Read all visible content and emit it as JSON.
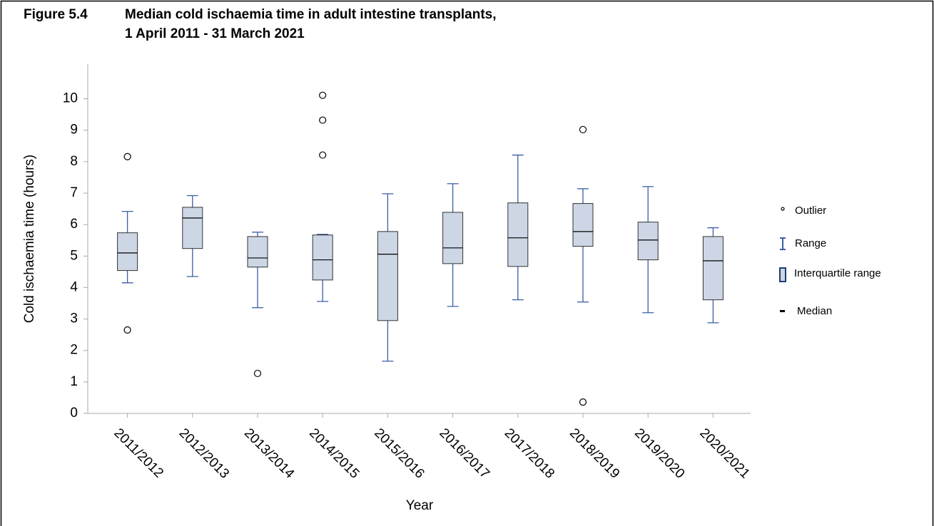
{
  "chart_data": {
    "type": "box",
    "figure_label": "Figure 5.4",
    "title": [
      "Median cold ischaemia time in adult intestine transplants,",
      "1 April 2011 - 31 March 2021"
    ],
    "x_label": "Year",
    "y_label": "Cold ischaemia time (hours)",
    "categories": [
      "2011/2012",
      "2012/2013",
      "2013/2014",
      "2014/2015",
      "2015/2016",
      "2016/2017",
      "2017/2018",
      "2018/2019",
      "2019/2020",
      "2020/2021"
    ],
    "boxes": [
      {
        "min": 4.15,
        "q1": 4.54,
        "median": 5.1,
        "q3": 5.74,
        "max": 6.42,
        "outliers": [
          8.16,
          2.65
        ]
      },
      {
        "min": 4.35,
        "q1": 5.24,
        "median": 6.21,
        "q3": 6.55,
        "max": 6.92,
        "outliers": []
      },
      {
        "min": 3.36,
        "q1": 4.65,
        "median": 4.94,
        "q3": 5.62,
        "max": 5.76,
        "outliers": [
          1.27
        ]
      },
      {
        "min": 3.56,
        "q1": 4.24,
        "median": 4.88,
        "q3": 5.67,
        "max": 5.69,
        "outliers": [
          10.11,
          9.32,
          8.21
        ]
      },
      {
        "min": 1.66,
        "q1": 2.95,
        "median": 5.06,
        "q3": 5.78,
        "max": 6.98,
        "outliers": []
      },
      {
        "min": 3.4,
        "q1": 4.76,
        "median": 5.26,
        "q3": 6.39,
        "max": 7.3,
        "outliers": []
      },
      {
        "min": 3.61,
        "q1": 4.67,
        "median": 5.58,
        "q3": 6.69,
        "max": 8.21,
        "outliers": []
      },
      {
        "min": 3.54,
        "q1": 5.31,
        "median": 5.78,
        "q3": 6.67,
        "max": 7.14,
        "outliers": [
          9.02,
          0.36
        ]
      },
      {
        "min": 3.2,
        "q1": 4.88,
        "median": 5.51,
        "q3": 6.08,
        "max": 7.21,
        "outliers": []
      },
      {
        "min": 2.88,
        "q1": 3.61,
        "median": 4.85,
        "q3": 5.62,
        "max": 5.9,
        "outliers": []
      }
    ],
    "legend": [
      "Outlier",
      "Range",
      "Interquartile range",
      "Median"
    ],
    "box_color": "#ccd6e5",
    "whisker_color": "#3a5ea8",
    "ylim": [
      0,
      11.1
    ],
    "yticks": [
      0,
      1,
      2,
      3,
      4,
      5,
      6,
      7,
      8,
      9,
      10
    ]
  }
}
